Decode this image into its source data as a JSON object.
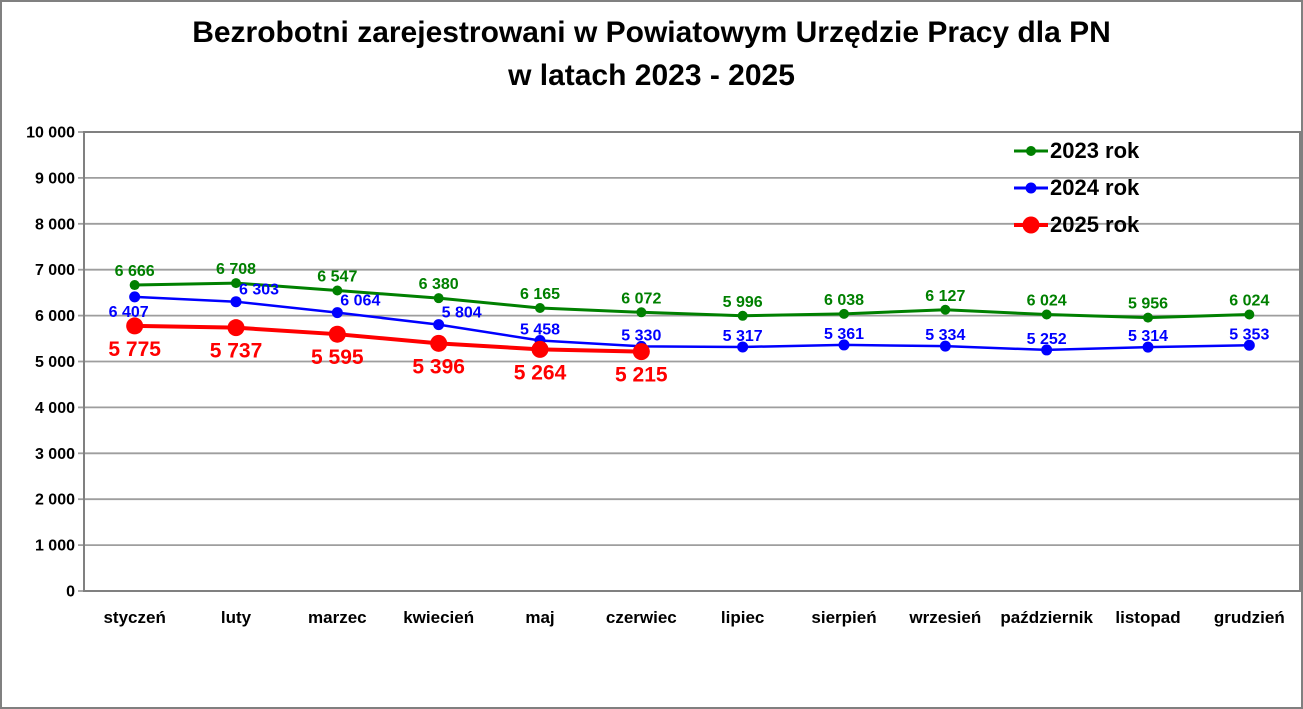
{
  "window": {
    "background": "#FFFFFF",
    "border_color": "#808080"
  },
  "chart_data": {
    "type": "line",
    "title": "Bezrobotni zarejestrowani w Powiatowym Urzędzie Pracy dla PN w latach 2023 - 2025",
    "title_lines": [
      "Bezrobotni zarejestrowani w Powiatowym Urzędzie Pracy dla PN",
      "w latach 2023 - 2025"
    ],
    "categories": [
      "styczeń",
      "luty",
      "marzec",
      "kwiecień",
      "maj",
      "czerwiec",
      "lipiec",
      "sierpień",
      "wrzesień",
      "październik",
      "listopad",
      "grudzień"
    ],
    "series": [
      {
        "name": "2023 rok",
        "color": "#008000",
        "values": [
          6666,
          6708,
          6547,
          6380,
          6165,
          6072,
          5996,
          6038,
          6127,
          6024,
          5956,
          6024
        ],
        "line_width": 3,
        "marker_radius": 5,
        "label_position": "above",
        "label_font_size": 16,
        "label_dy": -9
      },
      {
        "name": "2024 rok",
        "color": "#0000FF",
        "values": [
          6407,
          6303,
          6064,
          5804,
          5458,
          5330,
          5317,
          5361,
          5334,
          5252,
          5314,
          5353
        ],
        "line_width": 2.5,
        "marker_radius": 5.5,
        "label_position": "above",
        "label_font_size": 16,
        "label_dy": -6,
        "label_overrides": {
          "0": {
            "dx": -6,
            "dy": 26
          },
          "1": {
            "dx": 23,
            "dy": -1
          },
          "2": {
            "dx": 23,
            "dy": -1
          },
          "3": {
            "dx": 23,
            "dy": -1
          }
        }
      },
      {
        "name": "2025 rok",
        "color": "#FF0000",
        "values": [
          5775,
          5737,
          5595,
          5396,
          5264,
          5215
        ],
        "line_width": 4,
        "marker_radius": 8.5,
        "label_position": "below",
        "label_font_size": 21,
        "label_dy": 30
      }
    ],
    "ylim": [
      0,
      10000
    ],
    "ytick_step": 1000,
    "ytick_labels": [
      "0",
      "1 000",
      "2 000",
      "3 000",
      "4 000",
      "5 000",
      "6 000",
      "7 000",
      "8 000",
      "9 000",
      "10 000"
    ],
    "xlabel": "",
    "ylabel": "",
    "grid": true,
    "gridline_color": "#9E9E9E",
    "plot_border_color": "#808080",
    "axis_text_color": "#000000",
    "legend_position": "top-right"
  }
}
